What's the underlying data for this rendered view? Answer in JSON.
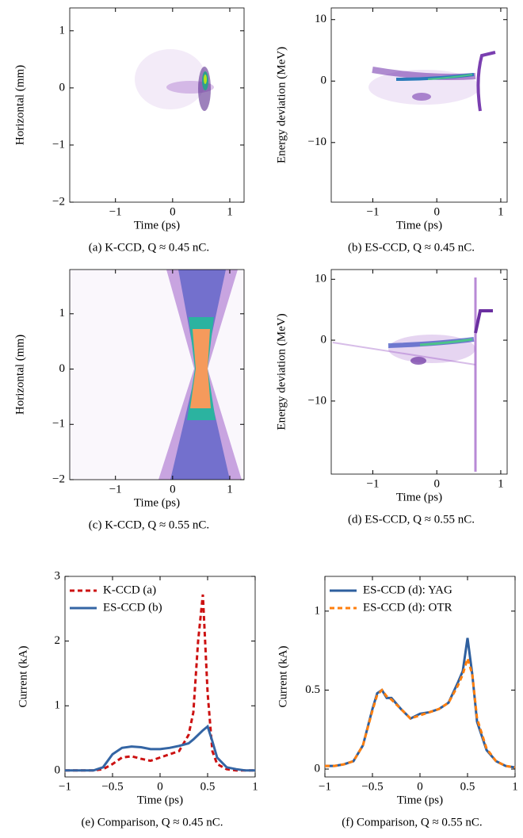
{
  "chart_data": [
    {
      "type": "heatmap",
      "xlabel": "Time (ps)",
      "ylabel": "Horizontal (mm)",
      "caption": "(a) K-CCD, Q ≈ 0.45 nC.",
      "xlim": [
        -1.8,
        1.25
      ],
      "ylim": [
        -2,
        1.4
      ],
      "xticks": [
        {
          "value": -1,
          "label": "−1"
        },
        0,
        1
      ],
      "yticks": [
        {
          "value": -2,
          "label": "−2"
        },
        {
          "value": -1,
          "label": "−1"
        },
        0,
        1
      ]
    },
    {
      "type": "heatmap",
      "xlabel": "Time (ps)",
      "ylabel": "Energy deviation (MeV)",
      "caption": "(b) ES-CCD, Q ≈ 0.45 nC.",
      "xlim": [
        -1.65,
        1.1
      ],
      "ylim": [
        -19.7,
        11.9
      ],
      "xticks": [
        {
          "value": -1,
          "label": "−1"
        },
        0,
        1
      ],
      "yticks": [
        {
          "value": -10,
          "label": "−10"
        },
        0,
        10
      ]
    },
    {
      "type": "heatmap",
      "xlabel": "Time (ps)",
      "ylabel": "Horizontal (mm)",
      "caption": "(c) K-CCD, Q ≈ 0.55 nC.",
      "xlim": [
        -1.8,
        1.25
      ],
      "ylim": [
        -2,
        1.8
      ],
      "xticks": [
        {
          "value": -1,
          "label": "−1"
        },
        0,
        1
      ],
      "yticks": [
        {
          "value": -2,
          "label": "−2"
        },
        {
          "value": -1,
          "label": "−1"
        },
        0,
        1
      ]
    },
    {
      "type": "heatmap",
      "xlabel": "Time (ps)",
      "ylabel": "Energy deviation (MeV)",
      "caption": "(d) ES-CCD, Q ≈ 0.55 nC.",
      "xlim": [
        -1.65,
        1.1
      ],
      "ylim": [
        -22,
        11.6
      ],
      "xticks": [
        {
          "value": -1,
          "label": "−1"
        },
        0,
        1
      ],
      "yticks": [
        {
          "value": -10,
          "label": "−10"
        },
        0,
        10
      ]
    },
    {
      "type": "line",
      "xlabel": "Time (ps)",
      "ylabel": "Current (kA)",
      "caption": "(e) Comparison, Q ≈ 0.45 nC.",
      "xlim": [
        -1,
        1
      ],
      "ylim": [
        -0.1,
        3
      ],
      "legend": "upper left",
      "xticks": [
        {
          "value": -1,
          "label": "−1"
        },
        {
          "value": -0.5,
          "label": "−0.5"
        },
        0,
        0.5,
        1
      ],
      "yticks": [
        0,
        1,
        2,
        3
      ],
      "x": [
        -1,
        -0.9,
        -0.8,
        -0.7,
        -0.6,
        -0.5,
        -0.4,
        -0.3,
        -0.2,
        -0.1,
        0,
        0.1,
        0.2,
        0.3,
        0.35,
        0.4,
        0.45,
        0.5,
        0.55,
        0.6,
        0.7,
        0.8,
        0.9,
        1
      ],
      "series": [
        {
          "name": "K-CCD (a)",
          "color": "#cc1111",
          "linestyle": "dashed",
          "values": [
            0,
            0,
            0,
            0,
            0.02,
            0.1,
            0.2,
            0.22,
            0.18,
            0.15,
            0.2,
            0.25,
            0.3,
            0.55,
            0.9,
            2.0,
            2.72,
            1.2,
            0.3,
            0.1,
            0.02,
            0,
            0,
            0
          ]
        },
        {
          "name": "ES-CCD (b)",
          "color": "#3465a4",
          "linestyle": "solid",
          "values": [
            0,
            0,
            0,
            0,
            0.05,
            0.25,
            0.35,
            0.37,
            0.36,
            0.33,
            0.33,
            0.35,
            0.38,
            0.42,
            0.48,
            0.55,
            0.62,
            0.68,
            0.45,
            0.2,
            0.05,
            0.02,
            0,
            0
          ]
        }
      ]
    },
    {
      "type": "line",
      "xlabel": "Time (ps)",
      "ylabel": "Current (kA)",
      "caption": "(f) Comparison, Q ≈ 0.55 nC.",
      "xlim": [
        -1,
        1
      ],
      "ylim": [
        -0.05,
        1.22
      ],
      "legend": "upper left",
      "xticks": [
        {
          "value": -1,
          "label": "−1"
        },
        {
          "value": -0.5,
          "label": "−0.5"
        },
        0,
        0.5,
        1
      ],
      "yticks": [
        0,
        0.5,
        1
      ],
      "x": [
        -1,
        -0.9,
        -0.8,
        -0.7,
        -0.6,
        -0.5,
        -0.45,
        -0.4,
        -0.35,
        -0.3,
        -0.2,
        -0.1,
        0,
        0.1,
        0.2,
        0.3,
        0.4,
        0.45,
        0.5,
        0.55,
        0.6,
        0.7,
        0.8,
        0.9,
        1
      ],
      "series": [
        {
          "name": "ES-CCD (d): YAG",
          "color": "#2e5f9e",
          "linestyle": "solid",
          "values": [
            0.02,
            0.02,
            0.03,
            0.05,
            0.15,
            0.38,
            0.48,
            0.5,
            0.45,
            0.45,
            0.38,
            0.32,
            0.35,
            0.36,
            0.38,
            0.42,
            0.55,
            0.62,
            0.83,
            0.6,
            0.3,
            0.12,
            0.05,
            0.02,
            0.01
          ]
        },
        {
          "name": "ES-CCD (d): OTR",
          "color": "#ff7f0e",
          "linestyle": "dashed",
          "values": [
            0.02,
            0.02,
            0.03,
            0.05,
            0.15,
            0.37,
            0.47,
            0.5,
            0.46,
            0.44,
            0.38,
            0.32,
            0.34,
            0.36,
            0.38,
            0.42,
            0.53,
            0.6,
            0.7,
            0.6,
            0.32,
            0.13,
            0.05,
            0.02,
            0.01
          ]
        }
      ]
    }
  ]
}
